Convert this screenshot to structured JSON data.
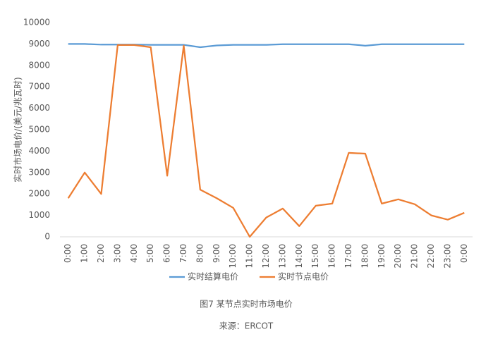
{
  "chart_data": {
    "type": "line",
    "y_label": "实时市场电价/(美元/兆瓦时)",
    "caption": "图7 某节点实时市场电价",
    "source": "来源：ERCOT",
    "categories": [
      "0:00",
      "1:00",
      "2:00",
      "3:00",
      "4:00",
      "5:00",
      "6:00",
      "7:00",
      "8:00",
      "9:00",
      "10:00",
      "11:00",
      "12:00",
      "13:00",
      "14:00",
      "15:00",
      "16:00",
      "17:00",
      "18:00",
      "19:00",
      "20:00",
      "21:00",
      "22:00",
      "23:00",
      "0:00"
    ],
    "series": [
      {
        "name": "实时结算电价",
        "color": "#5b9bd5",
        "values": [
          9000,
          9000,
          8970,
          8970,
          8970,
          8960,
          8960,
          8960,
          8850,
          8930,
          8960,
          8960,
          8960,
          8990,
          8990,
          8990,
          8990,
          8990,
          8920,
          8990,
          8990,
          8990,
          8990,
          8990,
          8990
        ]
      },
      {
        "name": "实时节点电价",
        "color": "#ed7d31",
        "values": [
          1800,
          3000,
          2000,
          8950,
          8950,
          8850,
          2850,
          8920,
          2200,
          1800,
          1350,
          0,
          900,
          1320,
          500,
          1450,
          1550,
          3920,
          3880,
          1550,
          1750,
          1520,
          1000,
          800,
          1120
        ]
      }
    ],
    "ylim": [
      0,
      10000
    ],
    "yticks": [
      0,
      1000,
      2000,
      3000,
      4000,
      5000,
      6000,
      7000,
      8000,
      9000,
      10000
    ],
    "grid": false,
    "legend": "bottom"
  }
}
